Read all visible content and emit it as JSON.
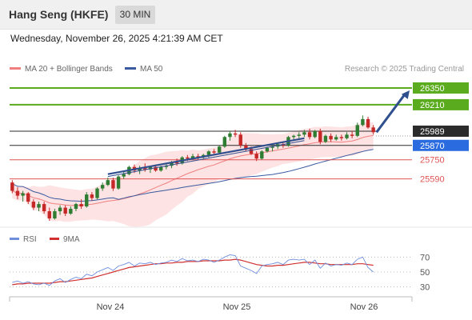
{
  "header": {
    "title": "Hang Seng (HKFE)",
    "interval": "30 MIN"
  },
  "timestamp": "Wednesday, November 26, 2025 4:21:39 AM CET",
  "legend": {
    "ma_bollinger": "MA 20 + Bollinger Bands",
    "ma50": "MA 50",
    "credit": "Research © 2025 Trading Central",
    "rsi": "RSI",
    "rsi_ma": "9MA"
  },
  "colors": {
    "bull": "#2e7d32",
    "bear": "#c62828",
    "ma20": "#f08080",
    "ma50": "#3a5aa0",
    "band_fill": "#fde3e3",
    "resistance": "#5aac1e",
    "pivot": "#2b2b2b",
    "support": "#e05555",
    "trend": "#2f4f8f",
    "rsi": "#6f8fdc",
    "rsi_ma": "#d03030"
  },
  "chart_data": {
    "type": "candlestick",
    "x_labels": [
      "Nov 24",
      "Nov 25",
      "Nov 26"
    ],
    "ylim": [
      25200,
      26450
    ],
    "candles": [
      {
        "o": 25560,
        "h": 25580,
        "l": 25470,
        "c": 25490
      },
      {
        "o": 25490,
        "h": 25520,
        "l": 25420,
        "c": 25450
      },
      {
        "o": 25450,
        "h": 25490,
        "l": 25400,
        "c": 25470
      },
      {
        "o": 25470,
        "h": 25480,
        "l": 25380,
        "c": 25400
      },
      {
        "o": 25400,
        "h": 25420,
        "l": 25330,
        "c": 25350
      },
      {
        "o": 25350,
        "h": 25400,
        "l": 25320,
        "c": 25380
      },
      {
        "o": 25380,
        "h": 25400,
        "l": 25300,
        "c": 25320
      },
      {
        "o": 25320,
        "h": 25350,
        "l": 25240,
        "c": 25260
      },
      {
        "o": 25260,
        "h": 25340,
        "l": 25250,
        "c": 25320
      },
      {
        "o": 25320,
        "h": 25370,
        "l": 25290,
        "c": 25350
      },
      {
        "o": 25350,
        "h": 25370,
        "l": 25280,
        "c": 25300
      },
      {
        "o": 25300,
        "h": 25360,
        "l": 25290,
        "c": 25340
      },
      {
        "o": 25340,
        "h": 25390,
        "l": 25320,
        "c": 25380
      },
      {
        "o": 25380,
        "h": 25420,
        "l": 25340,
        "c": 25360
      },
      {
        "o": 25360,
        "h": 25480,
        "l": 25350,
        "c": 25460
      },
      {
        "o": 25460,
        "h": 25480,
        "l": 25410,
        "c": 25430
      },
      {
        "o": 25430,
        "h": 25520,
        "l": 25420,
        "c": 25510
      },
      {
        "o": 25510,
        "h": 25560,
        "l": 25490,
        "c": 25540
      },
      {
        "o": 25540,
        "h": 25600,
        "l": 25530,
        "c": 25580
      },
      {
        "o": 25580,
        "h": 25600,
        "l": 25490,
        "c": 25510
      },
      {
        "o": 25510,
        "h": 25620,
        "l": 25500,
        "c": 25610
      },
      {
        "o": 25610,
        "h": 25650,
        "l": 25590,
        "c": 25630
      },
      {
        "o": 25630,
        "h": 25700,
        "l": 25620,
        "c": 25690
      },
      {
        "o": 25690,
        "h": 25710,
        "l": 25640,
        "c": 25660
      },
      {
        "o": 25660,
        "h": 25700,
        "l": 25630,
        "c": 25680
      },
      {
        "o": 25680,
        "h": 25720,
        "l": 25650,
        "c": 25670
      },
      {
        "o": 25670,
        "h": 25700,
        "l": 25640,
        "c": 25690
      },
      {
        "o": 25690,
        "h": 25710,
        "l": 25650,
        "c": 25660
      },
      {
        "o": 25660,
        "h": 25700,
        "l": 25650,
        "c": 25690
      },
      {
        "o": 25690,
        "h": 25720,
        "l": 25670,
        "c": 25700
      },
      {
        "o": 25700,
        "h": 25740,
        "l": 25680,
        "c": 25730
      },
      {
        "o": 25730,
        "h": 25760,
        "l": 25700,
        "c": 25720
      },
      {
        "o": 25720,
        "h": 25780,
        "l": 25710,
        "c": 25770
      },
      {
        "o": 25770,
        "h": 25790,
        "l": 25740,
        "c": 25760
      },
      {
        "o": 25760,
        "h": 25800,
        "l": 25750,
        "c": 25780
      },
      {
        "o": 25780,
        "h": 25800,
        "l": 25750,
        "c": 25770
      },
      {
        "o": 25770,
        "h": 25800,
        "l": 25760,
        "c": 25790
      },
      {
        "o": 25790,
        "h": 25830,
        "l": 25770,
        "c": 25820
      },
      {
        "o": 25820,
        "h": 25840,
        "l": 25790,
        "c": 25810
      },
      {
        "o": 25810,
        "h": 25870,
        "l": 25800,
        "c": 25860
      },
      {
        "o": 25860,
        "h": 25950,
        "l": 25850,
        "c": 25940
      },
      {
        "o": 25940,
        "h": 25990,
        "l": 25910,
        "c": 25970
      },
      {
        "o": 25970,
        "h": 26000,
        "l": 25940,
        "c": 25960
      },
      {
        "o": 25960,
        "h": 25980,
        "l": 25850,
        "c": 25870
      },
      {
        "o": 25870,
        "h": 25890,
        "l": 25820,
        "c": 25840
      },
      {
        "o": 25840,
        "h": 25860,
        "l": 25790,
        "c": 25800
      },
      {
        "o": 25800,
        "h": 25820,
        "l": 25740,
        "c": 25760
      },
      {
        "o": 25760,
        "h": 25830,
        "l": 25750,
        "c": 25820
      },
      {
        "o": 25820,
        "h": 25860,
        "l": 25810,
        "c": 25850
      },
      {
        "o": 25850,
        "h": 25870,
        "l": 25820,
        "c": 25860
      },
      {
        "o": 25860,
        "h": 25890,
        "l": 25840,
        "c": 25880
      },
      {
        "o": 25880,
        "h": 25900,
        "l": 25850,
        "c": 25870
      },
      {
        "o": 25870,
        "h": 25950,
        "l": 25860,
        "c": 25940
      },
      {
        "o": 25940,
        "h": 25960,
        "l": 25910,
        "c": 25950
      },
      {
        "o": 25950,
        "h": 25980,
        "l": 25930,
        "c": 25960
      },
      {
        "o": 25960,
        "h": 26000,
        "l": 25940,
        "c": 25980
      },
      {
        "o": 25980,
        "h": 26010,
        "l": 25920,
        "c": 25940
      },
      {
        "o": 25940,
        "h": 26000,
        "l": 25930,
        "c": 25990
      },
      {
        "o": 25990,
        "h": 26010,
        "l": 25880,
        "c": 25900
      },
      {
        "o": 25900,
        "h": 25960,
        "l": 25890,
        "c": 25950
      },
      {
        "o": 25950,
        "h": 25970,
        "l": 25900,
        "c": 25920
      },
      {
        "o": 25920,
        "h": 25960,
        "l": 25910,
        "c": 25940
      },
      {
        "o": 25940,
        "h": 25960,
        "l": 25910,
        "c": 25930
      },
      {
        "o": 25930,
        "h": 25980,
        "l": 25920,
        "c": 25960
      },
      {
        "o": 25960,
        "h": 25990,
        "l": 25930,
        "c": 25950
      },
      {
        "o": 25950,
        "h": 26060,
        "l": 25940,
        "c": 26040
      },
      {
        "o": 26040,
        "h": 26120,
        "l": 26030,
        "c": 26090
      },
      {
        "o": 26090,
        "h": 26110,
        "l": 26010,
        "c": 26020
      },
      {
        "o": 26020,
        "h": 26040,
        "l": 25960,
        "c": 25980
      }
    ],
    "levels": [
      {
        "value": 26350,
        "label": "26350",
        "kind": "resistance"
      },
      {
        "value": 26210,
        "label": "26210",
        "kind": "resistance"
      },
      {
        "value": 25989,
        "label": "25989",
        "kind": "pivot"
      },
      {
        "value": 25870,
        "label": "25870",
        "kind": "pivot-support"
      },
      {
        "value": 25750,
        "label": "25750",
        "kind": "support"
      },
      {
        "value": 25590,
        "label": "25590",
        "kind": "support"
      }
    ],
    "trendline": [
      [
        18,
        25630
      ],
      [
        55,
        25930
      ]
    ],
    "arrow_target": 26330,
    "rsi": {
      "ticks": [
        70,
        50,
        30
      ],
      "ylim": [
        20,
        80
      ],
      "rsi": [
        36,
        38,
        35,
        37,
        34,
        33,
        35,
        32,
        38,
        41,
        36,
        40,
        43,
        41,
        47,
        45,
        50,
        53,
        56,
        52,
        58,
        60,
        63,
        58,
        62,
        61,
        63,
        60,
        62,
        63,
        66,
        64,
        68,
        65,
        66,
        64,
        67,
        66,
        63,
        66,
        70,
        73,
        72,
        58,
        55,
        52,
        48,
        58,
        60,
        61,
        63,
        60,
        66,
        67,
        66,
        67,
        60,
        66,
        55,
        62,
        58,
        60,
        59,
        62,
        60,
        67,
        70,
        56,
        50
      ],
      "ma": [
        33,
        34,
        34,
        35,
        35,
        35,
        35,
        35,
        36,
        37,
        37,
        38,
        39,
        40,
        41,
        42,
        44,
        46,
        48,
        50,
        52,
        54,
        56,
        57,
        58,
        59,
        60,
        61,
        61,
        62,
        62,
        63,
        63,
        64,
        64,
        64,
        65,
        65,
        65,
        65,
        66,
        66,
        67,
        66,
        64,
        62,
        60,
        59,
        58,
        58,
        59,
        59,
        60,
        61,
        62,
        63,
        63,
        62,
        61,
        61,
        60,
        60,
        60,
        60,
        60,
        61,
        61,
        60,
        59
      ]
    }
  }
}
